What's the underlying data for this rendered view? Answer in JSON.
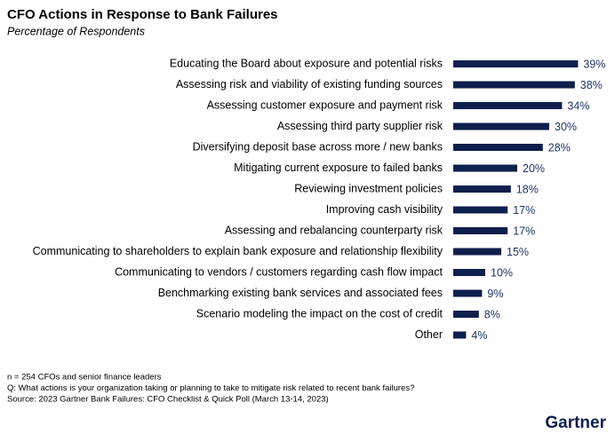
{
  "chart_data": {
    "type": "bar",
    "orientation": "horizontal",
    "title": "CFO Actions in Response to Bank Failures",
    "subtitle": "Percentage of Respondents",
    "categories": [
      "Educating the Board about exposure and potential risks",
      "Assessing risk and viability of existing funding sources",
      "Assessing customer exposure and payment risk",
      "Assessing third party supplier risk",
      "Diversifying deposit base across more / new banks",
      "Mitigating current exposure to failed banks",
      "Reviewing investment policies",
      "Improving cash visibility",
      "Assessing and rebalancing counterparty risk",
      "Communicating to shareholders to explain bank exposure and relationship flexibility",
      "Communicating to vendors / customers regarding cash flow impact",
      "Benchmarking existing bank services and associated fees",
      "Scenario modeling the impact on the cost of credit",
      "Other"
    ],
    "values": [
      39,
      38,
      34,
      30,
      28,
      20,
      18,
      17,
      17,
      15,
      10,
      9,
      8,
      4
    ],
    "value_labels": [
      "39%",
      "38%",
      "34%",
      "30%",
      "28%",
      "20%",
      "18%",
      "17%",
      "17%",
      "15%",
      "10%",
      "9%",
      "8%",
      "4%"
    ],
    "color": "#0f1f4d",
    "notes": [
      "n = 254 CFOs and senior finance leaders",
      "Q: What actions is your organization taking or planning to take to mitigate risk related to recent bank failures?",
      "Source: 2023 Gartner Bank Failures: CFO Checklist & Quick Poll (March 13-14, 2023)"
    ]
  },
  "logo": "Gartner"
}
